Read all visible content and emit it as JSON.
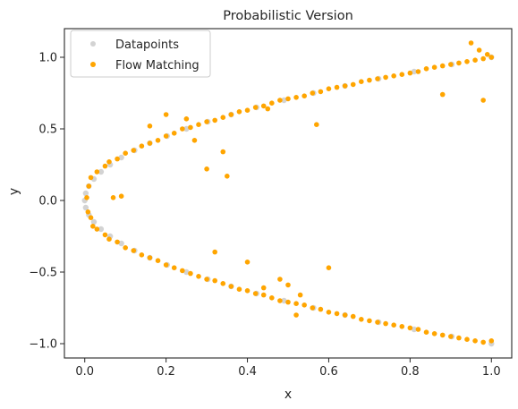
{
  "chart_data": {
    "type": "scatter",
    "title": "Probabilistic Version",
    "xlabel": "x",
    "ylabel": "y",
    "xlim": [
      -0.05,
      1.05
    ],
    "ylim": [
      -1.1,
      1.2
    ],
    "x_ticks": [
      0.0,
      0.2,
      0.4,
      0.6,
      0.8,
      1.0
    ],
    "x_tick_labels": [
      "0.0",
      "0.2",
      "0.4",
      "0.6",
      "0.8",
      "1.0"
    ],
    "y_ticks": [
      -1.0,
      -0.5,
      0.0,
      0.5,
      1.0
    ],
    "y_tick_labels": [
      "−1.0",
      "−0.5",
      "0.0",
      "0.5",
      "1.0"
    ],
    "grid": false,
    "legend_position": "top-left",
    "series": [
      {
        "name": "Datapoints",
        "color": "#d3d3d3",
        "points": [
          [
            0.0,
            0.0
          ],
          [
            0.0025,
            0.05
          ],
          [
            0.0025,
            -0.05
          ],
          [
            0.01,
            0.1
          ],
          [
            0.01,
            -0.1
          ],
          [
            0.0225,
            0.15
          ],
          [
            0.0225,
            -0.15
          ],
          [
            0.04,
            0.2
          ],
          [
            0.04,
            -0.2
          ],
          [
            0.0625,
            0.25
          ],
          [
            0.0625,
            -0.25
          ],
          [
            0.09,
            0.3
          ],
          [
            0.09,
            -0.3
          ],
          [
            0.1225,
            0.35
          ],
          [
            0.1225,
            -0.35
          ],
          [
            0.16,
            0.4
          ],
          [
            0.16,
            -0.4
          ],
          [
            0.2025,
            0.45
          ],
          [
            0.2025,
            -0.45
          ],
          [
            0.25,
            0.5
          ],
          [
            0.25,
            -0.5
          ],
          [
            0.3025,
            0.55
          ],
          [
            0.3025,
            -0.55
          ],
          [
            0.36,
            0.6
          ],
          [
            0.36,
            -0.6
          ],
          [
            0.4225,
            0.65
          ],
          [
            0.4225,
            -0.65
          ],
          [
            0.49,
            0.7
          ],
          [
            0.49,
            -0.7
          ],
          [
            0.5625,
            0.75
          ],
          [
            0.5625,
            -0.75
          ],
          [
            0.64,
            0.8
          ],
          [
            0.64,
            -0.8
          ],
          [
            0.7225,
            0.85
          ],
          [
            0.7225,
            -0.85
          ],
          [
            0.81,
            0.9
          ],
          [
            0.81,
            -0.9
          ],
          [
            0.9025,
            0.95
          ],
          [
            0.9025,
            -0.95
          ],
          [
            1.0,
            1.0
          ],
          [
            1.0,
            -1.0
          ]
        ]
      },
      {
        "name": "Flow Matching",
        "color": "#ffa500",
        "points": [
          [
            0.005,
            0.02
          ],
          [
            0.01,
            0.1
          ],
          [
            0.015,
            0.16
          ],
          [
            0.008,
            -0.08
          ],
          [
            0.015,
            -0.12
          ],
          [
            0.02,
            -0.18
          ],
          [
            0.03,
            0.2
          ],
          [
            0.05,
            0.24
          ],
          [
            0.06,
            0.27
          ],
          [
            0.08,
            0.29
          ],
          [
            0.1,
            0.33
          ],
          [
            0.12,
            0.35
          ],
          [
            0.14,
            0.38
          ],
          [
            0.16,
            0.4
          ],
          [
            0.18,
            0.42
          ],
          [
            0.2,
            0.45
          ],
          [
            0.22,
            0.47
          ],
          [
            0.24,
            0.5
          ],
          [
            0.26,
            0.51
          ],
          [
            0.28,
            0.53
          ],
          [
            0.3,
            0.55
          ],
          [
            0.32,
            0.56
          ],
          [
            0.34,
            0.58
          ],
          [
            0.36,
            0.6
          ],
          [
            0.38,
            0.62
          ],
          [
            0.4,
            0.63
          ],
          [
            0.42,
            0.65
          ],
          [
            0.44,
            0.66
          ],
          [
            0.46,
            0.68
          ],
          [
            0.48,
            0.7
          ],
          [
            0.5,
            0.71
          ],
          [
            0.52,
            0.72
          ],
          [
            0.54,
            0.73
          ],
          [
            0.56,
            0.75
          ],
          [
            0.58,
            0.76
          ],
          [
            0.6,
            0.78
          ],
          [
            0.62,
            0.79
          ],
          [
            0.64,
            0.8
          ],
          [
            0.66,
            0.81
          ],
          [
            0.68,
            0.83
          ],
          [
            0.7,
            0.84
          ],
          [
            0.72,
            0.85
          ],
          [
            0.74,
            0.86
          ],
          [
            0.76,
            0.87
          ],
          [
            0.78,
            0.88
          ],
          [
            0.8,
            0.89
          ],
          [
            0.82,
            0.9
          ],
          [
            0.84,
            0.92
          ],
          [
            0.86,
            0.93
          ],
          [
            0.88,
            0.94
          ],
          [
            0.9,
            0.95
          ],
          [
            0.92,
            0.96
          ],
          [
            0.94,
            0.97
          ],
          [
            0.96,
            0.98
          ],
          [
            0.98,
            0.99
          ],
          [
            1.0,
            1.0
          ],
          [
            0.99,
            1.02
          ],
          [
            0.97,
            1.05
          ],
          [
            0.95,
            1.1
          ],
          [
            0.03,
            -0.2
          ],
          [
            0.05,
            -0.24
          ],
          [
            0.06,
            -0.27
          ],
          [
            0.08,
            -0.29
          ],
          [
            0.1,
            -0.33
          ],
          [
            0.12,
            -0.35
          ],
          [
            0.14,
            -0.38
          ],
          [
            0.16,
            -0.4
          ],
          [
            0.18,
            -0.42
          ],
          [
            0.2,
            -0.45
          ],
          [
            0.22,
            -0.47
          ],
          [
            0.24,
            -0.49
          ],
          [
            0.26,
            -0.51
          ],
          [
            0.28,
            -0.53
          ],
          [
            0.3,
            -0.55
          ],
          [
            0.32,
            -0.56
          ],
          [
            0.34,
            -0.58
          ],
          [
            0.36,
            -0.6
          ],
          [
            0.38,
            -0.62
          ],
          [
            0.4,
            -0.63
          ],
          [
            0.42,
            -0.65
          ],
          [
            0.44,
            -0.66
          ],
          [
            0.46,
            -0.68
          ],
          [
            0.48,
            -0.7
          ],
          [
            0.5,
            -0.71
          ],
          [
            0.52,
            -0.72
          ],
          [
            0.54,
            -0.73
          ],
          [
            0.56,
            -0.75
          ],
          [
            0.58,
            -0.76
          ],
          [
            0.6,
            -0.78
          ],
          [
            0.62,
            -0.79
          ],
          [
            0.64,
            -0.8
          ],
          [
            0.66,
            -0.81
          ],
          [
            0.68,
            -0.83
          ],
          [
            0.7,
            -0.84
          ],
          [
            0.72,
            -0.85
          ],
          [
            0.74,
            -0.86
          ],
          [
            0.76,
            -0.87
          ],
          [
            0.78,
            -0.88
          ],
          [
            0.8,
            -0.89
          ],
          [
            0.82,
            -0.9
          ],
          [
            0.84,
            -0.92
          ],
          [
            0.86,
            -0.93
          ],
          [
            0.88,
            -0.94
          ],
          [
            0.9,
            -0.95
          ],
          [
            0.92,
            -0.96
          ],
          [
            0.94,
            -0.97
          ],
          [
            0.96,
            -0.98
          ],
          [
            0.98,
            -0.99
          ],
          [
            1.0,
            -0.98
          ],
          [
            0.07,
            0.02
          ],
          [
            0.3,
            0.22
          ],
          [
            0.35,
            0.17
          ],
          [
            0.32,
            -0.36
          ],
          [
            0.4,
            -0.43
          ],
          [
            0.6,
            -0.47
          ],
          [
            0.57,
            0.53
          ],
          [
            0.98,
            0.7
          ],
          [
            0.88,
            0.74
          ],
          [
            0.09,
            0.03
          ],
          [
            0.2,
            0.6
          ],
          [
            0.25,
            0.57
          ],
          [
            0.16,
            0.52
          ],
          [
            0.27,
            0.42
          ],
          [
            0.45,
            0.64
          ],
          [
            0.34,
            0.34
          ],
          [
            0.44,
            -0.61
          ],
          [
            0.5,
            -0.59
          ],
          [
            0.48,
            -0.55
          ],
          [
            0.53,
            -0.66
          ],
          [
            0.52,
            -0.8
          ]
        ]
      }
    ]
  }
}
